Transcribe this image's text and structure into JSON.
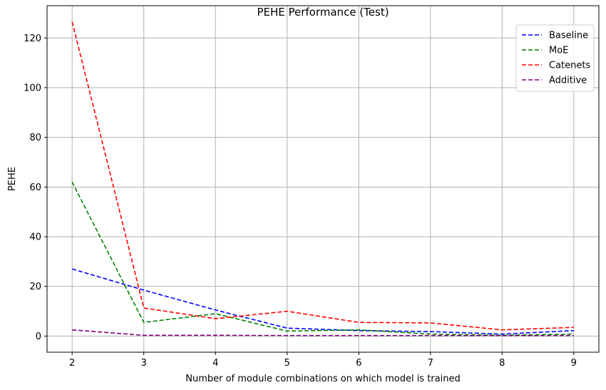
{
  "chart_data": {
    "type": "line",
    "title": "PEHE Performance (Test)",
    "xlabel": "Number of module combinations on which model is trained",
    "ylabel": "PEHE",
    "x": [
      2,
      3,
      4,
      5,
      6,
      7,
      8,
      9
    ],
    "xlim": [
      1.65,
      9.35
    ],
    "ylim": [
      -6.5,
      133
    ],
    "xticks": [
      2,
      3,
      4,
      5,
      6,
      7,
      8,
      9
    ],
    "yticks": [
      0,
      20,
      40,
      60,
      80,
      100,
      120
    ],
    "grid": true,
    "legend_position": "top-right",
    "line_style": "dashed",
    "series": [
      {
        "name": "Baseline",
        "color": "#0000ff",
        "values": [
          27,
          18.5,
          10.5,
          3.2,
          2.2,
          1.8,
          0.8,
          2.2
        ]
      },
      {
        "name": "MoE",
        "color": "#008000",
        "values": [
          62,
          5.5,
          9,
          2.0,
          2.5,
          0.8,
          0.3,
          0.8
        ]
      },
      {
        "name": "Catenets",
        "color": "#ff0000",
        "values": [
          126.5,
          11.3,
          7.0,
          10.0,
          5.5,
          5.3,
          2.5,
          3.5
        ]
      },
      {
        "name": "Additive",
        "color": "#800080",
        "values": [
          2.5,
          0.3,
          0.3,
          0.2,
          0.2,
          0.2,
          0.2,
          0.2
        ]
      }
    ]
  }
}
